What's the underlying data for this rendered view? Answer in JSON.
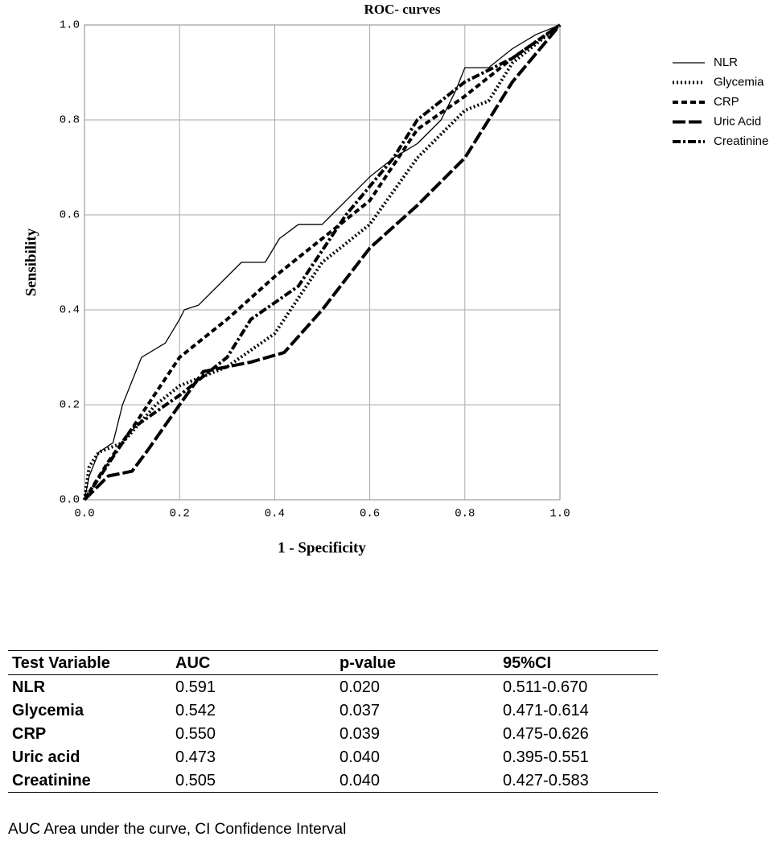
{
  "chart_data": {
    "type": "line",
    "title": "ROC- curves",
    "xlabel": "1 - Specificity",
    "ylabel": "Sensibility",
    "xlim": [
      0,
      1
    ],
    "ylim": [
      0,
      1
    ],
    "xticks": [
      {
        "value": 0,
        "label": "0.0"
      },
      0.2,
      0.4,
      0.6,
      0.8,
      {
        "value": 1,
        "label": "1.0"
      }
    ],
    "yticks": [
      {
        "value": 0,
        "label": "0.0"
      },
      0.2,
      0.4,
      0.6,
      0.8,
      {
        "value": 1,
        "label": "1.0"
      }
    ],
    "grid": true,
    "legend": "right",
    "series": [
      {
        "name": "NLR",
        "color": "#000000",
        "style": "solid",
        "x": [
          0,
          0.01,
          0.03,
          0.06,
          0.08,
          0.1,
          0.12,
          0.17,
          0.2,
          0.21,
          0.24,
          0.28,
          0.33,
          0.38,
          0.41,
          0.45,
          0.5,
          0.52,
          0.6,
          0.65,
          0.7,
          0.75,
          0.78,
          0.8,
          0.85,
          0.9,
          0.95,
          1
        ],
        "values": [
          0,
          0.05,
          0.1,
          0.12,
          0.2,
          0.25,
          0.3,
          0.33,
          0.38,
          0.4,
          0.41,
          0.45,
          0.5,
          0.5,
          0.55,
          0.58,
          0.58,
          0.6,
          0.68,
          0.72,
          0.75,
          0.8,
          0.86,
          0.91,
          0.91,
          0.95,
          0.98,
          1
        ]
      },
      {
        "name": "Glycemia",
        "color": "#000000",
        "style": "dotted",
        "x": [
          0,
          0.01,
          0.03,
          0.08,
          0.15,
          0.2,
          0.3,
          0.4,
          0.5,
          0.6,
          0.65,
          0.7,
          0.8,
          0.85,
          0.9,
          1
        ],
        "values": [
          0,
          0.07,
          0.1,
          0.12,
          0.2,
          0.24,
          0.28,
          0.35,
          0.5,
          0.58,
          0.65,
          0.72,
          0.82,
          0.84,
          0.92,
          1
        ]
      },
      {
        "name": "CRP",
        "color": "#000000",
        "style": "dashed",
        "x": [
          0,
          0.05,
          0.1,
          0.2,
          0.3,
          0.4,
          0.5,
          0.6,
          0.7,
          0.8,
          0.9,
          1
        ],
        "values": [
          0,
          0.08,
          0.15,
          0.3,
          0.38,
          0.47,
          0.55,
          0.63,
          0.78,
          0.85,
          0.93,
          1
        ]
      },
      {
        "name": "Uric Acid",
        "color": "#000000",
        "style": "longdash",
        "x": [
          0,
          0.05,
          0.1,
          0.13,
          0.2,
          0.25,
          0.35,
          0.42,
          0.5,
          0.6,
          0.7,
          0.8,
          0.9,
          1
        ],
        "values": [
          0,
          0.05,
          0.06,
          0.1,
          0.2,
          0.27,
          0.29,
          0.31,
          0.4,
          0.53,
          0.62,
          0.72,
          0.88,
          1
        ]
      },
      {
        "name": "Creatinine",
        "color": "#000000",
        "style": "dashdot",
        "x": [
          0,
          0.02,
          0.1,
          0.2,
          0.3,
          0.35,
          0.45,
          0.55,
          0.65,
          0.7,
          0.8,
          0.9,
          1
        ],
        "values": [
          0,
          0.03,
          0.15,
          0.22,
          0.3,
          0.38,
          0.45,
          0.6,
          0.72,
          0.8,
          0.88,
          0.93,
          1
        ]
      }
    ]
  },
  "table": {
    "header": [
      "Test Variable",
      "AUC",
      "p-value",
      "95%CI"
    ],
    "rows": [
      [
        "NLR",
        "0.591",
        "0.020",
        "0.511-0.670"
      ],
      [
        "Glycemia",
        "0.542",
        "0.037",
        "0.471-0.614"
      ],
      [
        "CRP",
        "0.550",
        "0.039",
        "0.475-0.626"
      ],
      [
        "Uric acid",
        "0.473",
        "0.040",
        "0.395-0.551"
      ],
      [
        "Creatinine",
        "0.505",
        "0.040",
        "0.427-0.583"
      ]
    ]
  },
  "footnote": "AUC Area under the curve, CI Confidence Interval"
}
